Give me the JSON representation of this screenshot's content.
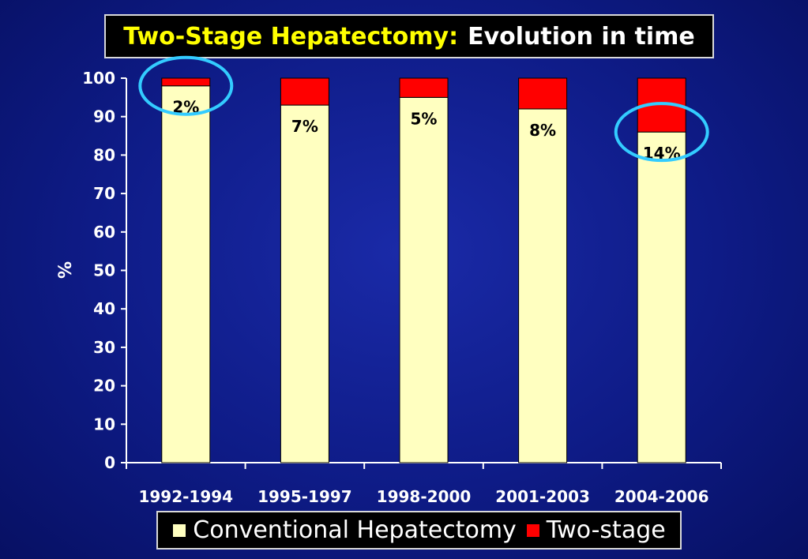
{
  "title": {
    "main": "Two-Stage Hepatectomy:",
    "sub": "Evolution in time"
  },
  "colors": {
    "conventional": "#ffffc0",
    "two_stage": "#ff0000",
    "highlight": "#33ccff",
    "axis": "#ffffff"
  },
  "chart_data": {
    "type": "bar",
    "stacked": true,
    "categories": [
      "1992-1994",
      "1995-1997",
      "1998-2000",
      "2001-2003",
      "2004-2006"
    ],
    "series": [
      {
        "name": "Conventional Hepatectomy",
        "values": [
          98,
          93,
          95,
          92,
          86
        ]
      },
      {
        "name": "Two-stage",
        "values": [
          2,
          7,
          5,
          8,
          14
        ]
      }
    ],
    "data_labels": [
      "2%",
      "7%",
      "5%",
      "8%",
      "14%"
    ],
    "highlighted_categories": [
      "1992-1994",
      "2004-2006"
    ],
    "ylabel": "%",
    "xlabel": "",
    "ylim": [
      0,
      100
    ],
    "yticks": [
      "0",
      "10",
      "20",
      "30",
      "40",
      "50",
      "60",
      "70",
      "80",
      "90",
      "100"
    ],
    "grid": false,
    "legend": "bottom"
  }
}
